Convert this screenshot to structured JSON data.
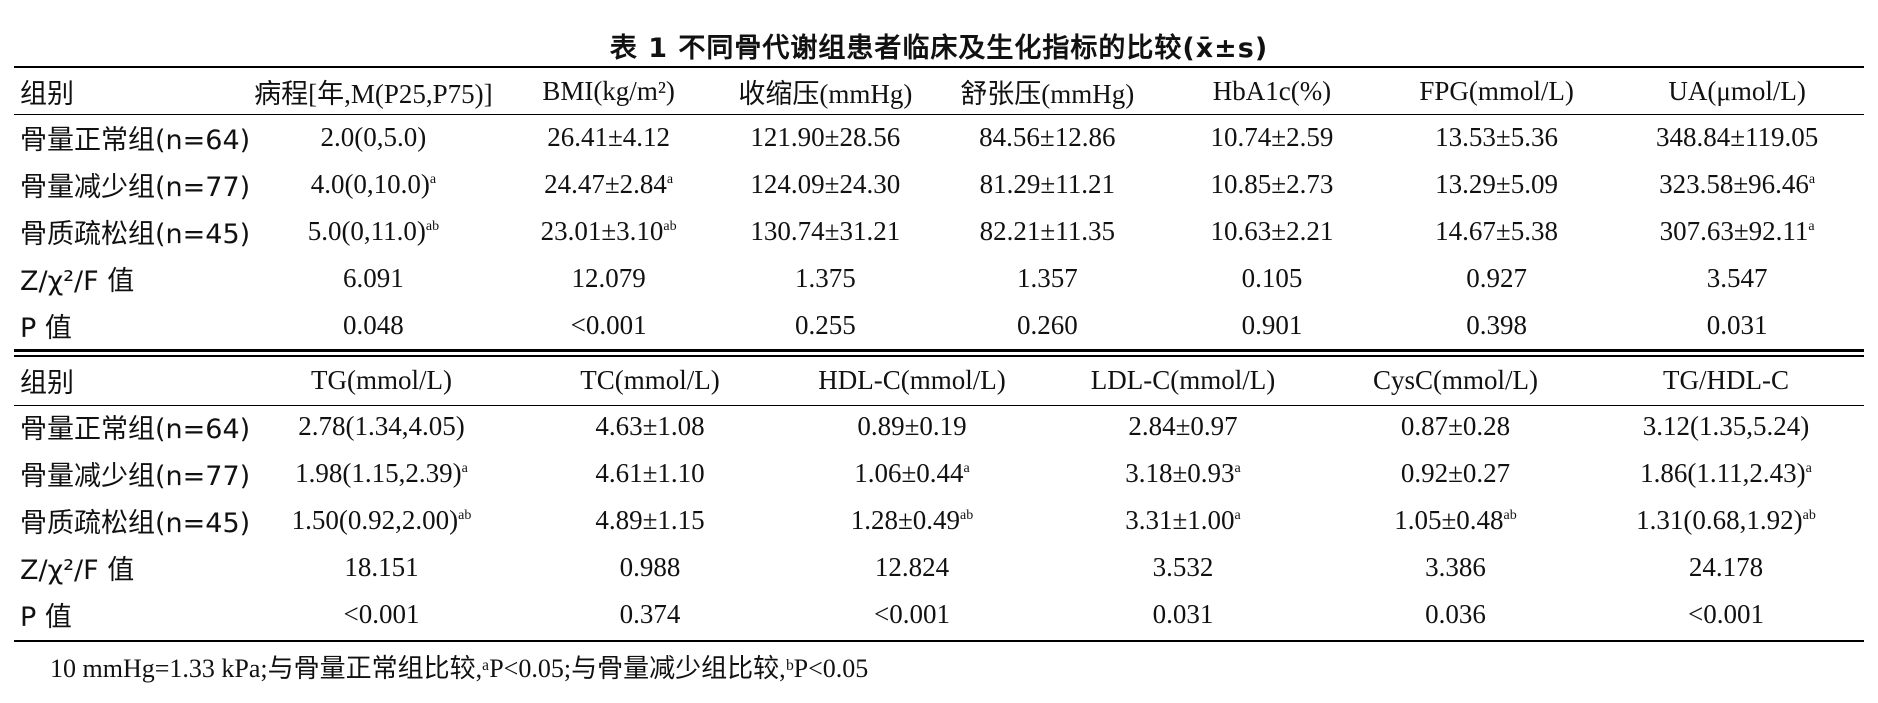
{
  "title": "表 1   不同骨代谢组患者临床及生化指标的比较(x̄±s)",
  "table1": {
    "header": [
      "组别",
      "病程[年,M(P25,P75)]",
      "BMI(kg/m²)",
      "收缩压(mmHg)",
      "舒张压(mmHg)",
      "HbA1c(%)",
      "FPG(mmol/L)",
      "UA(μmol/L)"
    ],
    "rows": [
      {
        "label": "骨量正常组(n=64)",
        "cells": [
          {
            "v": "2.0(0,5.0)",
            "s": ""
          },
          {
            "v": "26.41±4.12",
            "s": ""
          },
          {
            "v": "121.90±28.56",
            "s": ""
          },
          {
            "v": "84.56±12.86",
            "s": ""
          },
          {
            "v": "10.74±2.59",
            "s": ""
          },
          {
            "v": "13.53±5.36",
            "s": ""
          },
          {
            "v": "348.84±119.05",
            "s": ""
          }
        ]
      },
      {
        "label": "骨量减少组(n=77)",
        "cells": [
          {
            "v": "4.0(0,10.0)",
            "s": "a"
          },
          {
            "v": "24.47±2.84",
            "s": "a"
          },
          {
            "v": "124.09±24.30",
            "s": ""
          },
          {
            "v": "81.29±11.21",
            "s": ""
          },
          {
            "v": "10.85±2.73",
            "s": ""
          },
          {
            "v": "13.29±5.09",
            "s": ""
          },
          {
            "v": "323.58±96.46",
            "s": "a"
          }
        ]
      },
      {
        "label": "骨质疏松组(n=45)",
        "cells": [
          {
            "v": "5.0(0,11.0)",
            "s": "ab"
          },
          {
            "v": "23.01±3.10",
            "s": "ab"
          },
          {
            "v": "130.74±31.21",
            "s": ""
          },
          {
            "v": "82.21±11.35",
            "s": ""
          },
          {
            "v": "10.63±2.21",
            "s": ""
          },
          {
            "v": "14.67±5.38",
            "s": ""
          },
          {
            "v": "307.63±92.11",
            "s": "a"
          }
        ]
      },
      {
        "label": "Z/χ²/F 值",
        "cells": [
          {
            "v": "6.091",
            "s": ""
          },
          {
            "v": "12.079",
            "s": ""
          },
          {
            "v": "1.375",
            "s": ""
          },
          {
            "v": "1.357",
            "s": ""
          },
          {
            "v": "0.105",
            "s": ""
          },
          {
            "v": "0.927",
            "s": ""
          },
          {
            "v": "3.547",
            "s": ""
          }
        ]
      },
      {
        "label": "P 值",
        "cells": [
          {
            "v": "0.048",
            "s": ""
          },
          {
            "v": "<0.001",
            "s": ""
          },
          {
            "v": "0.255",
            "s": ""
          },
          {
            "v": "0.260",
            "s": ""
          },
          {
            "v": "0.901",
            "s": ""
          },
          {
            "v": "0.398",
            "s": ""
          },
          {
            "v": "0.031",
            "s": ""
          }
        ]
      }
    ]
  },
  "table2": {
    "header": [
      "组别",
      "TG(mmol/L)",
      "TC(mmol/L)",
      "HDL-C(mmol/L)",
      "LDL-C(mmol/L)",
      "CysC(mmol/L)",
      "TG/HDL-C"
    ],
    "rows": [
      {
        "label": "骨量正常组(n=64)",
        "cells": [
          {
            "v": "2.78(1.34,4.05)",
            "s": ""
          },
          {
            "v": "4.63±1.08",
            "s": ""
          },
          {
            "v": "0.89±0.19",
            "s": ""
          },
          {
            "v": "2.84±0.97",
            "s": ""
          },
          {
            "v": "0.87±0.28",
            "s": ""
          },
          {
            "v": "3.12(1.35,5.24)",
            "s": ""
          }
        ]
      },
      {
        "label": "骨量减少组(n=77)",
        "cells": [
          {
            "v": "1.98(1.15,2.39)",
            "s": "a"
          },
          {
            "v": "4.61±1.10",
            "s": ""
          },
          {
            "v": "1.06±0.44",
            "s": "a"
          },
          {
            "v": "3.18±0.93",
            "s": "a"
          },
          {
            "v": "0.92±0.27",
            "s": ""
          },
          {
            "v": "1.86(1.11,2.43)",
            "s": "a"
          }
        ]
      },
      {
        "label": "骨质疏松组(n=45)",
        "cells": [
          {
            "v": "1.50(0.92,2.00)",
            "s": "ab"
          },
          {
            "v": "4.89±1.15",
            "s": ""
          },
          {
            "v": "1.28±0.49",
            "s": "ab"
          },
          {
            "v": "3.31±1.00",
            "s": "a"
          },
          {
            "v": "1.05±0.48",
            "s": "ab"
          },
          {
            "v": "1.31(0.68,1.92)",
            "s": "ab"
          }
        ]
      },
      {
        "label": "Z/χ²/F 值",
        "cells": [
          {
            "v": "18.151",
            "s": ""
          },
          {
            "v": "0.988",
            "s": ""
          },
          {
            "v": "12.824",
            "s": ""
          },
          {
            "v": "3.532",
            "s": ""
          },
          {
            "v": "3.386",
            "s": ""
          },
          {
            "v": "24.178",
            "s": ""
          }
        ]
      },
      {
        "label": "P 值",
        "cells": [
          {
            "v": "<0.001",
            "s": ""
          },
          {
            "v": "0.374",
            "s": ""
          },
          {
            "v": "<0.001",
            "s": ""
          },
          {
            "v": "0.031",
            "s": ""
          },
          {
            "v": "0.036",
            "s": ""
          },
          {
            "v": "<0.001",
            "s": ""
          }
        ]
      }
    ]
  },
  "footnote": "10 mmHg=1.33 kPa;与骨量正常组比较,ᵃP<0.05;与骨量减少组比较,ᵇP<0.05"
}
